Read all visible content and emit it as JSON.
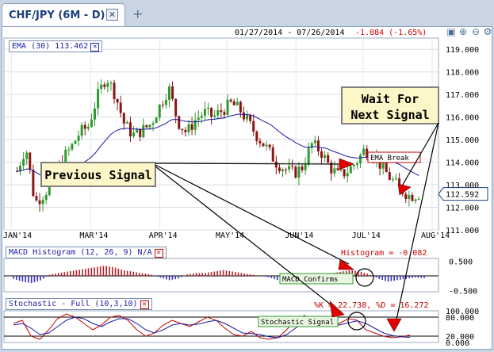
{
  "tab": {
    "title": "CHF/JPY (6M - D)",
    "close_icon": "close-icon",
    "add_icon": "plus-icon"
  },
  "header": {
    "date_range": "01/27/2014 - 07/26/2014",
    "change": "-1.884 (-1.65%)"
  },
  "toolbar": {
    "icons": [
      "restore-icon",
      "zoom-in-icon",
      "zoom-out-icon",
      "settings-icon"
    ]
  },
  "indicators": {
    "ema": {
      "label": "EMA (30) 113.462",
      "color": "#1a1aa0"
    },
    "macd": {
      "label": "MACD Histogram (12, 26, 9) N/A",
      "value_text": "Histogram = -0.082"
    },
    "stoch": {
      "label": "Stochastic - Full (10,3,10)",
      "value_text": "%K = 22.738, %D = 16.272"
    }
  },
  "chart_data": [
    {
      "type": "candlestick",
      "x_tick_labels": [
        "JAN'14",
        "MAR'14",
        "APR'14",
        "MAY'14",
        "JUN'14",
        "JUL'14",
        "AUG'14"
      ],
      "y_tick_labels": [
        "111.000",
        "112.000",
        "113.000",
        "114.000",
        "115.000",
        "116.000",
        "117.000",
        "118.000",
        "119.000"
      ],
      "ylim": [
        111,
        119.5
      ],
      "last_price": "112.592",
      "close_path": [
        {
          "date": "2014-01-27",
          "close": 113.6
        },
        {
          "date": "2014-01-31",
          "close": 114.7
        },
        {
          "date": "2014-02-03",
          "close": 112.2
        },
        {
          "date": "2014-02-07",
          "close": 112.6
        },
        {
          "date": "2014-02-11",
          "close": 113.1
        },
        {
          "date": "2014-02-14",
          "close": 114.1
        },
        {
          "date": "2014-02-20",
          "close": 114.6
        },
        {
          "date": "2014-02-25",
          "close": 115.3
        },
        {
          "date": "2014-03-01",
          "close": 115.6
        },
        {
          "date": "2014-03-06",
          "close": 116.9
        },
        {
          "date": "2014-03-10",
          "close": 117.8
        },
        {
          "date": "2014-03-14",
          "close": 117.0
        },
        {
          "date": "2014-03-18",
          "close": 115.7
        },
        {
          "date": "2014-03-22",
          "close": 115.2
        },
        {
          "date": "2014-03-27",
          "close": 115.4
        },
        {
          "date": "2014-04-02",
          "close": 115.7
        },
        {
          "date": "2014-04-05",
          "close": 116.5
        },
        {
          "date": "2014-04-08",
          "close": 117.3
        },
        {
          "date": "2014-04-11",
          "close": 115.8
        },
        {
          "date": "2014-04-16",
          "close": 115.3
        },
        {
          "date": "2014-04-21",
          "close": 115.9
        },
        {
          "date": "2014-04-25",
          "close": 116.2
        },
        {
          "date": "2014-04-30",
          "close": 116.0
        },
        {
          "date": "2014-05-04",
          "close": 116.3
        },
        {
          "date": "2014-05-08",
          "close": 116.6
        },
        {
          "date": "2014-05-12",
          "close": 116.3
        },
        {
          "date": "2014-05-16",
          "close": 115.7
        },
        {
          "date": "2014-05-20",
          "close": 115.1
        },
        {
          "date": "2014-05-24",
          "close": 114.6
        },
        {
          "date": "2014-05-28",
          "close": 114.0
        },
        {
          "date": "2014-06-01",
          "close": 113.7
        },
        {
          "date": "2014-06-05",
          "close": 113.5
        },
        {
          "date": "2014-06-09",
          "close": 113.8
        },
        {
          "date": "2014-06-14",
          "close": 114.8
        },
        {
          "date": "2014-06-18",
          "close": 114.5
        },
        {
          "date": "2014-06-22",
          "close": 113.8
        },
        {
          "date": "2014-06-26",
          "close": 113.4
        },
        {
          "date": "2014-06-30",
          "close": 113.6
        },
        {
          "date": "2014-07-04",
          "close": 114.0
        },
        {
          "date": "2014-07-08",
          "close": 114.6
        },
        {
          "date": "2014-07-11",
          "close": 114.3
        },
        {
          "date": "2014-07-15",
          "close": 113.7
        },
        {
          "date": "2014-07-18",
          "close": 113.2
        },
        {
          "date": "2014-07-21",
          "close": 112.8
        },
        {
          "date": "2014-07-24",
          "close": 112.5
        },
        {
          "date": "2014-07-26",
          "close": 112.6
        }
      ]
    },
    {
      "type": "bar",
      "name": "MACD Histogram",
      "y_tick_labels": [
        "0.500",
        "-0.500"
      ],
      "ylim": [
        -0.6,
        0.6
      ],
      "values": [
        -0.1,
        -0.2,
        -0.25,
        -0.15,
        0.05,
        0.1,
        0.15,
        0.2,
        0.25,
        0.3,
        0.35,
        0.3,
        0.2,
        0.15,
        0.1,
        0.05,
        -0.05,
        -0.15,
        -0.1,
        0.05,
        0.1,
        0.1,
        0.15,
        0.2,
        0.15,
        0.1,
        0.05,
        0.0,
        -0.05,
        -0.15,
        -0.2,
        -0.25,
        -0.2,
        -0.1,
        0.0,
        0.1,
        0.15,
        0.2,
        0.15,
        0.05,
        -0.1,
        -0.2,
        -0.15,
        -0.1,
        -0.05,
        -0.08
      ]
    },
    {
      "type": "line",
      "name": "Stochastic",
      "y_tick_labels": [
        "100.000",
        "80.000",
        "20.000",
        "0.000"
      ],
      "ylim": [
        0,
        100
      ],
      "series": [
        {
          "name": "%K",
          "color": "#c00000",
          "values": [
            60,
            70,
            20,
            10,
            40,
            75,
            90,
            80,
            60,
            40,
            55,
            80,
            85,
            70,
            40,
            20,
            30,
            55,
            70,
            60,
            50,
            65,
            80,
            70,
            45,
            25,
            20,
            35,
            15,
            10,
            15,
            40,
            70,
            85,
            75,
            55,
            50,
            60,
            75,
            70,
            40,
            30,
            20,
            15,
            18,
            23
          ]
        },
        {
          "name": "%D",
          "color": "#1a1aa0",
          "values": [
            55,
            60,
            45,
            25,
            30,
            50,
            70,
            80,
            75,
            60,
            50,
            65,
            75,
            75,
            60,
            40,
            30,
            40,
            55,
            60,
            55,
            58,
            65,
            70,
            60,
            45,
            30,
            28,
            25,
            18,
            15,
            25,
            45,
            65,
            75,
            70,
            60,
            55,
            62,
            68,
            60,
            45,
            30,
            22,
            18,
            16
          ]
        }
      ]
    }
  ],
  "annotations": {
    "wait_box": [
      "Wait For",
      "Next Signal"
    ],
    "previous_signal": "Previous Signal",
    "ema_break": "EMA Break",
    "macd_confirms": "MACD Confirms",
    "stochastic_signal": "Stochastic Signal"
  }
}
